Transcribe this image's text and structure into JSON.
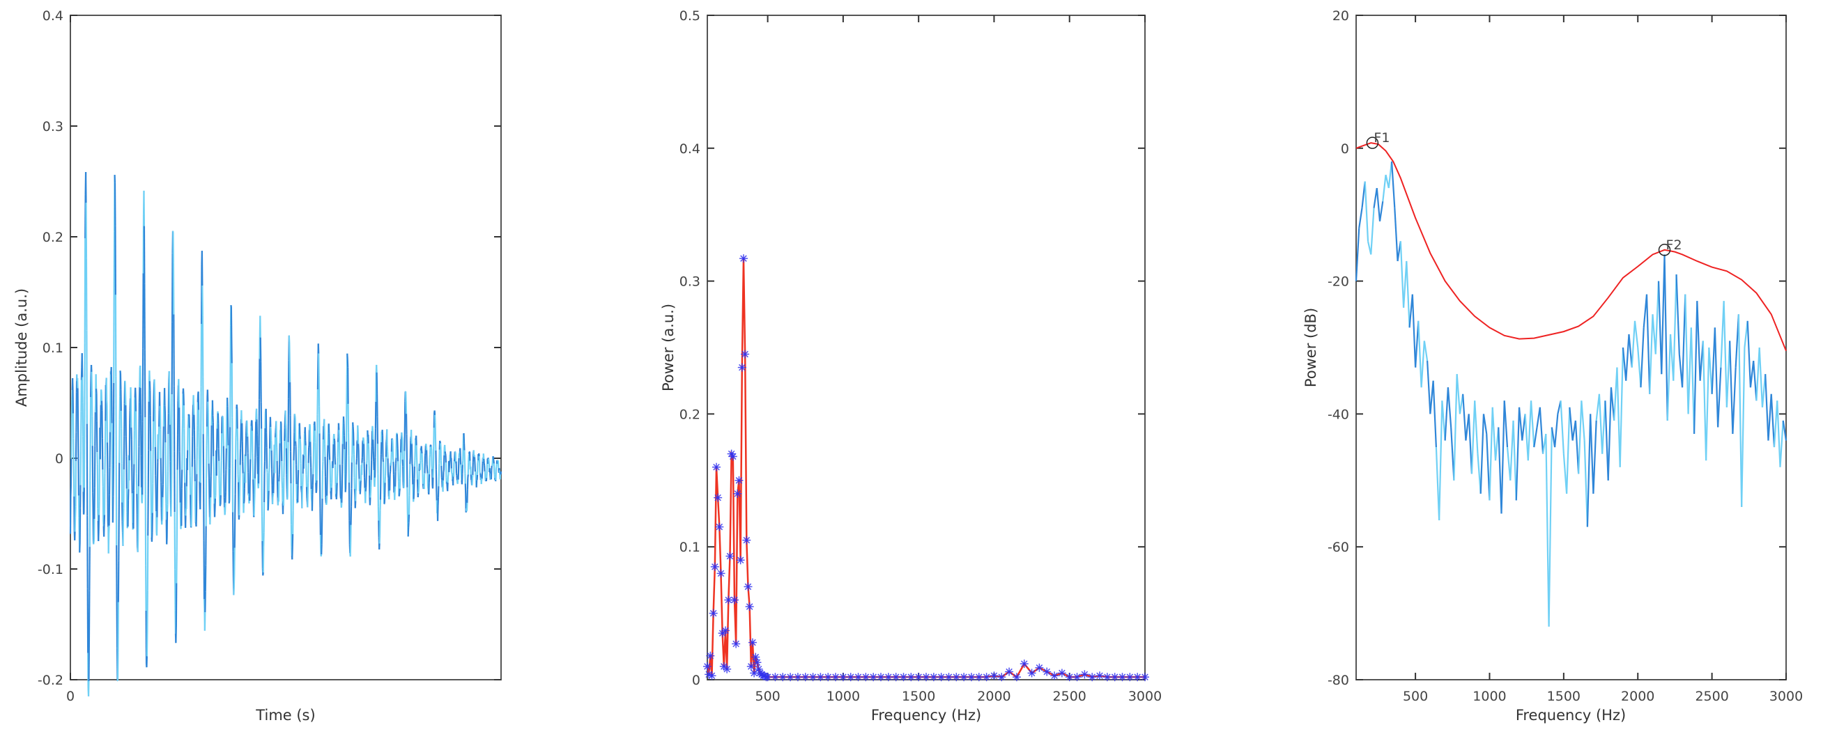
{
  "chart_data": [
    {
      "type": "line",
      "xlabel": "Time (s)",
      "ylabel": "Amplitude (a.u.)",
      "ylim": [
        -0.2,
        0.4
      ],
      "yticks": [
        "-0.2",
        "-0.1",
        "0",
        "0.1",
        "0.2",
        "0.3",
        "0.4"
      ],
      "xticks": [
        "0"
      ],
      "grid": false,
      "colors": [
        "#2f86d8",
        "#6fd0f5"
      ],
      "pulse_peaks": [
        0.25,
        0.24,
        0.23,
        0.205,
        0.175,
        0.137,
        0.123,
        0.108,
        0.099,
        0.093,
        0.082,
        0.068,
        0.047,
        0.024
      ],
      "pulse_troughs": [
        -0.163,
        -0.15,
        -0.137,
        -0.115,
        -0.11,
        -0.085,
        -0.068,
        -0.058,
        -0.055,
        -0.053,
        -0.05,
        -0.04,
        -0.03,
        -0.03
      ]
    },
    {
      "type": "line",
      "xlabel": "Frequency (Hz)",
      "ylabel": "Power (a.u.)",
      "xlim": [
        100,
        3000
      ],
      "ylim": [
        0,
        0.5
      ],
      "xticks": [
        "500",
        "1000",
        "1500",
        "2000",
        "2500",
        "3000"
      ],
      "yticks": [
        "0",
        "0.1",
        "0.2",
        "0.3",
        "0.4",
        "0.5"
      ],
      "grid": false,
      "line_color": "#ee3322",
      "marker": "asterisk",
      "marker_color": "#3333ee",
      "x": [
        100,
        110,
        120,
        130,
        140,
        150,
        160,
        170,
        180,
        190,
        200,
        210,
        220,
        230,
        240,
        250,
        260,
        270,
        280,
        290,
        300,
        310,
        320,
        330,
        340,
        350,
        360,
        370,
        380,
        390,
        400,
        410,
        420,
        430,
        440,
        450,
        460,
        470,
        480,
        490,
        500,
        550,
        600,
        650,
        700,
        750,
        800,
        850,
        900,
        950,
        1000,
        1050,
        1100,
        1150,
        1200,
        1250,
        1300,
        1350,
        1400,
        1450,
        1500,
        1550,
        1600,
        1650,
        1700,
        1750,
        1800,
        1850,
        1900,
        1950,
        2000,
        2050,
        2100,
        2150,
        2200,
        2250,
        2300,
        2350,
        2400,
        2450,
        2500,
        2550,
        2600,
        2650,
        2700,
        2750,
        2800,
        2850,
        2900,
        2950,
        3000
      ],
      "y": [
        0.01,
        0.004,
        0.018,
        0.003,
        0.05,
        0.085,
        0.16,
        0.137,
        0.115,
        0.08,
        0.035,
        0.01,
        0.037,
        0.008,
        0.06,
        0.093,
        0.17,
        0.168,
        0.06,
        0.027,
        0.14,
        0.15,
        0.09,
        0.235,
        0.317,
        0.245,
        0.105,
        0.07,
        0.055,
        0.01,
        0.028,
        0.005,
        0.017,
        0.013,
        0.008,
        0.005,
        0.004,
        0.003,
        0.003,
        0.002,
        0.002,
        0.002,
        0.002,
        0.002,
        0.002,
        0.002,
        0.002,
        0.002,
        0.002,
        0.002,
        0.002,
        0.002,
        0.002,
        0.002,
        0.002,
        0.002,
        0.002,
        0.002,
        0.002,
        0.002,
        0.002,
        0.002,
        0.002,
        0.002,
        0.002,
        0.002,
        0.002,
        0.002,
        0.002,
        0.002,
        0.003,
        0.002,
        0.006,
        0.002,
        0.012,
        0.005,
        0.009,
        0.006,
        0.003,
        0.005,
        0.002,
        0.002,
        0.004,
        0.002,
        0.003,
        0.002,
        0.002,
        0.002,
        0.002,
        0.002,
        0.002
      ]
    },
    {
      "type": "line",
      "xlabel": "Frequency (Hz)",
      "ylabel": "Power (dB)",
      "xlim": [
        100,
        3000
      ],
      "ylim": [
        -80,
        20
      ],
      "xticks": [
        "500",
        "1000",
        "1500",
        "2000",
        "2500",
        "3000"
      ],
      "yticks": [
        "-80",
        "-60",
        "-40",
        "-20",
        "0",
        "20"
      ],
      "grid": false,
      "spectrum": {
        "colors": [
          "#2f86d8",
          "#6fd0f5"
        ],
        "x_start": 100,
        "x_step": 20,
        "y": [
          -20,
          -12,
          -9,
          -5,
          -14,
          -16,
          -9,
          -6,
          -11,
          -8,
          -4,
          -6,
          -2,
          -9,
          -17,
          -14,
          -24,
          -17,
          -27,
          -22,
          -33,
          -26,
          -36,
          -29,
          -32,
          -40,
          -35,
          -45,
          -56,
          -38,
          -44,
          -36,
          -42,
          -50,
          -34,
          -40,
          -37,
          -44,
          -40,
          -49,
          -38,
          -46,
          -52,
          -40,
          -43,
          -53,
          -39,
          -47,
          -42,
          -55,
          -38,
          -45,
          -50,
          -41,
          -53,
          -39,
          -44,
          -40,
          -47,
          -38,
          -45,
          -42,
          -39,
          -46,
          -43,
          -72,
          -42,
          -45,
          -40,
          -38,
          -46,
          -52,
          -39,
          -44,
          -41,
          -49,
          -38,
          -44,
          -57,
          -40,
          -52,
          -41,
          -37,
          -46,
          -38,
          -50,
          -36,
          -41,
          -33,
          -48,
          -30,
          -35,
          -28,
          -33,
          -26,
          -30,
          -36,
          -27,
          -22,
          -37,
          -25,
          -31,
          -20,
          -34,
          -16,
          -41,
          -28,
          -35,
          -19,
          -31,
          -36,
          -22,
          -40,
          -27,
          -43,
          -23,
          -35,
          -29,
          -47,
          -30,
          -37,
          -27,
          -42,
          -33,
          -23,
          -39,
          -29,
          -43,
          -33,
          -25,
          -54,
          -30,
          -26,
          -36,
          -32,
          -38,
          -30,
          -39,
          -34,
          -44,
          -37,
          -45,
          -38,
          -48,
          -41,
          -44
        ]
      },
      "envelope": {
        "color": "#ee2222",
        "x": [
          100,
          150,
          200,
          250,
          300,
          350,
          400,
          500,
          600,
          700,
          800,
          900,
          1000,
          1100,
          1200,
          1300,
          1400,
          1500,
          1600,
          1700,
          1800,
          1900,
          2000,
          2100,
          2180,
          2250,
          2300,
          2400,
          2500,
          2600,
          2700,
          2800,
          2900,
          3000
        ],
        "y": [
          0,
          0.4,
          0.8,
          0.6,
          -0.4,
          -2,
          -4.5,
          -10.5,
          -15.8,
          -20,
          -23,
          -25.3,
          -27,
          -28.2,
          -28.7,
          -28.6,
          -28.1,
          -27.6,
          -26.8,
          -25.3,
          -22.5,
          -19.5,
          -17.8,
          -16,
          -15.3,
          -15.6,
          -16,
          -17,
          -17.9,
          -18.5,
          -19.8,
          -21.8,
          -25,
          -30.5
        ]
      },
      "annotations": [
        {
          "label": "F1",
          "x": 210,
          "y": 0.8
        },
        {
          "label": "F2",
          "x": 2180,
          "y": -15.3
        }
      ]
    }
  ]
}
